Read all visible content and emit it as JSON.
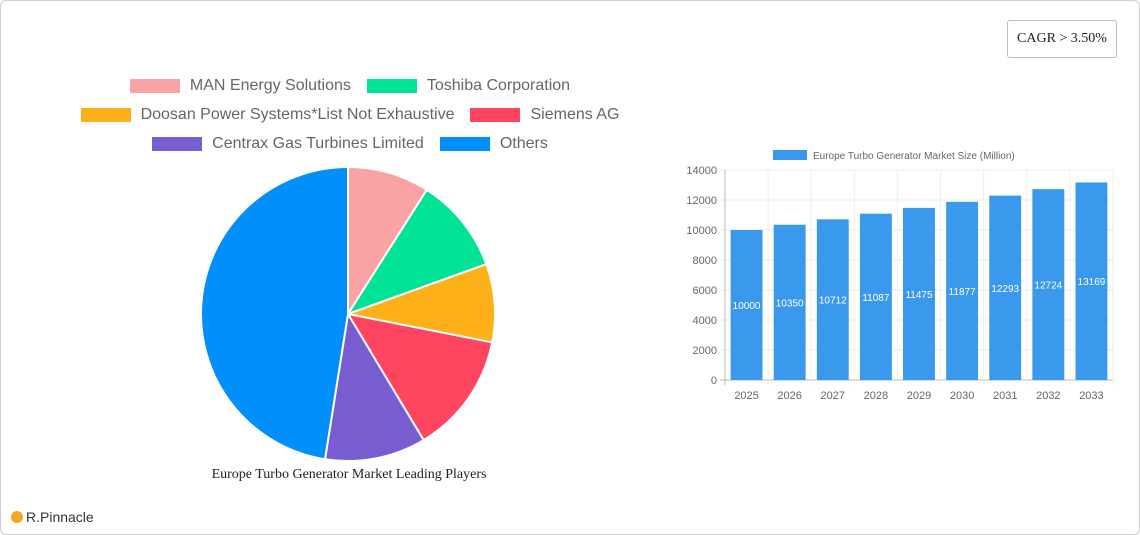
{
  "cagr_badge": "CAGR > 3.50%",
  "logo_text": "R.Pinnacle",
  "pie": {
    "title": "Europe Turbo Generator Market Leading Players",
    "legend": [
      {
        "label": "MAN Energy Solutions",
        "color": "#f9a3a4"
      },
      {
        "label": "Toshiba Corporation",
        "color": "#00e396"
      },
      {
        "label": "Doosan Power Systems*List Not Exhaustive",
        "color": "#feb019"
      },
      {
        "label": "Siemens AG",
        "color": "#ff4560"
      },
      {
        "label": "Centrax Gas Turbines Limited",
        "color": "#775dd0"
      },
      {
        "label": "Others",
        "color": "#008ffb"
      }
    ]
  },
  "bar": {
    "legend_label": "Europe Turbo Generator Market Size (Million)",
    "color": "#3a99ed",
    "y_ticks": [
      "0",
      "2000",
      "4000",
      "6000",
      "8000",
      "10000",
      "12000",
      "14000"
    ]
  },
  "chart_data": [
    {
      "type": "pie",
      "title": "Europe Turbo Generator Market Leading Players",
      "categories": [
        "MAN Energy Solutions",
        "Toshiba Corporation",
        "Doosan Power Systems*List Not Exhaustive",
        "Siemens AG",
        "Centrax Gas Turbines Limited",
        "Others"
      ],
      "values": [
        9.0,
        10.5,
        8.6,
        13.3,
        11.1,
        47.5
      ],
      "colors": [
        "#f9a3a4",
        "#00e396",
        "#feb019",
        "#ff4560",
        "#775dd0",
        "#008ffb"
      ],
      "legend_position": "top"
    },
    {
      "type": "bar",
      "title": "",
      "categories": [
        "2025",
        "2026",
        "2027",
        "2028",
        "2029",
        "2030",
        "2031",
        "2032",
        "2033"
      ],
      "series": [
        {
          "name": "Europe Turbo Generator Market Size (Million)",
          "values": [
            10000,
            10350,
            10712,
            11087,
            11475,
            11877,
            12293,
            12724,
            13169
          ]
        }
      ],
      "xlabel": "",
      "ylabel": "",
      "ylim": [
        0,
        14000
      ],
      "grid": true,
      "legend_position": "top",
      "data_labels": true
    }
  ]
}
